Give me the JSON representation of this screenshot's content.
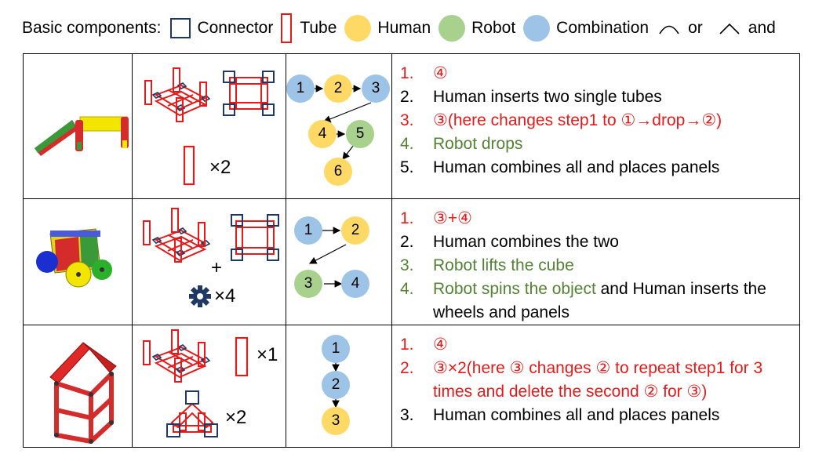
{
  "legend": {
    "label": "Basic components:",
    "connector": "Connector",
    "tube": "Tube",
    "human": "Human",
    "robot": "Robot",
    "combination": "Combination",
    "or": "or",
    "and": "and"
  },
  "colors": {
    "connector": "#1f3864",
    "tube": "#e31b1b",
    "human": "#ffd966",
    "robot": "#a9d18e",
    "combination": "#9dc3e6",
    "red_text": "#e31b1b",
    "green_text": "#548235"
  },
  "rows": [
    {
      "multipliers": [
        "×2"
      ],
      "nodes": [
        "1",
        "2",
        "3",
        "4",
        "5",
        "6"
      ],
      "steps": [
        {
          "num": "1.",
          "parts": [
            {
              "text": "④",
              "color": "red"
            }
          ]
        },
        {
          "num": "2.",
          "parts": [
            {
              "text": "Human inserts two single tubes",
              "color": "black"
            }
          ]
        },
        {
          "num": "3.",
          "parts": [
            {
              "text": "③(here changes step1 to ①→drop→②)",
              "color": "red"
            }
          ]
        },
        {
          "num": "4.",
          "parts": [
            {
              "text": "Robot drops",
              "color": "green"
            }
          ]
        },
        {
          "num": "5.",
          "parts": [
            {
              "text": "Human combines all and places panels",
              "color": "black"
            }
          ]
        }
      ]
    },
    {
      "multipliers": [
        "+",
        "×4"
      ],
      "nodes": [
        "1",
        "2",
        "3",
        "4"
      ],
      "steps": [
        {
          "num": "1.",
          "parts": [
            {
              "text": "③+④",
              "color": "red"
            }
          ]
        },
        {
          "num": "2.",
          "parts": [
            {
              "text": "Human combines the two",
              "color": "black"
            }
          ]
        },
        {
          "num": "3.",
          "parts": [
            {
              "text": "Robot lifts the cube",
              "color": "green"
            }
          ]
        },
        {
          "num": "4.",
          "parts": [
            {
              "text": "Robot spins the object",
              "color": "green"
            },
            {
              "text": " and Human inserts the wheels and panels",
              "color": "black"
            }
          ]
        }
      ]
    },
    {
      "multipliers": [
        "×1",
        "×2"
      ],
      "nodes": [
        "1",
        "2",
        "3"
      ],
      "steps": [
        {
          "num": "1.",
          "parts": [
            {
              "text": "④",
              "color": "red"
            }
          ]
        },
        {
          "num": "2.",
          "parts": [
            {
              "text": "③×2(here ③ changes ② to repeat step1 for 3 times and delete the second ② for ③)",
              "color": "red"
            }
          ]
        },
        {
          "num": "3.",
          "parts": [
            {
              "text": "Human combines all and places panels",
              "color": "black"
            }
          ]
        }
      ]
    }
  ]
}
